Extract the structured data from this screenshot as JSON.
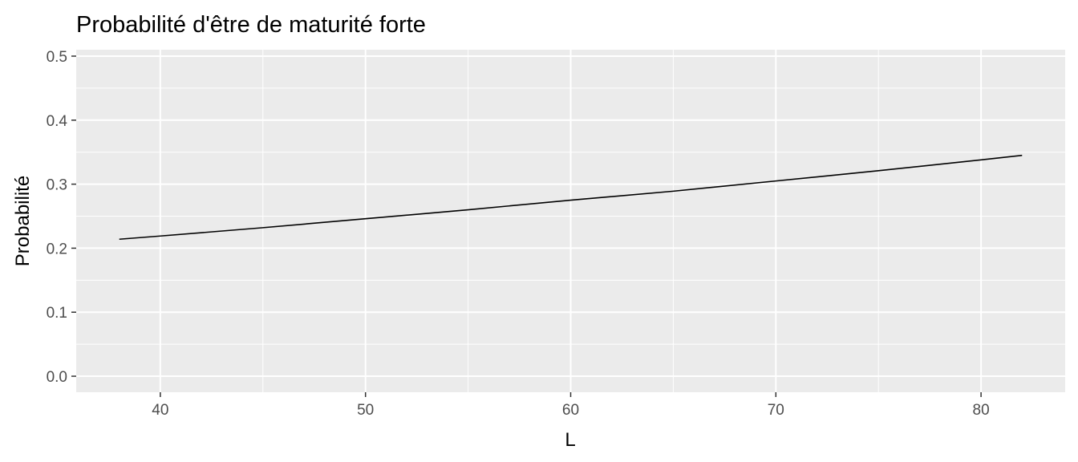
{
  "chart_data": {
    "type": "line",
    "title": "Probabilité d'être de maturité forte",
    "xlabel": "L",
    "ylabel": "Probabilité",
    "xlim": [
      35.9,
      84.1
    ],
    "ylim": [
      -0.025,
      0.51
    ],
    "x_ticks": [
      40,
      50,
      60,
      70,
      80
    ],
    "x_tick_labels": [
      "40",
      "50",
      "60",
      "70",
      "80"
    ],
    "y_ticks": [
      0.0,
      0.1,
      0.2,
      0.3,
      0.4,
      0.5
    ],
    "y_tick_labels": [
      "0.0",
      "0.1",
      "0.2",
      "0.3",
      "0.4",
      "0.5"
    ],
    "grid": true,
    "legend": "none",
    "series": [
      {
        "x": [
          38,
          40,
          45,
          50,
          55,
          60,
          65,
          70,
          75,
          80,
          82
        ],
        "y": [
          0.214,
          0.219,
          0.232,
          0.246,
          0.26,
          0.275,
          0.289,
          0.305,
          0.321,
          0.338,
          0.345
        ],
        "color": "#000000"
      }
    ]
  }
}
